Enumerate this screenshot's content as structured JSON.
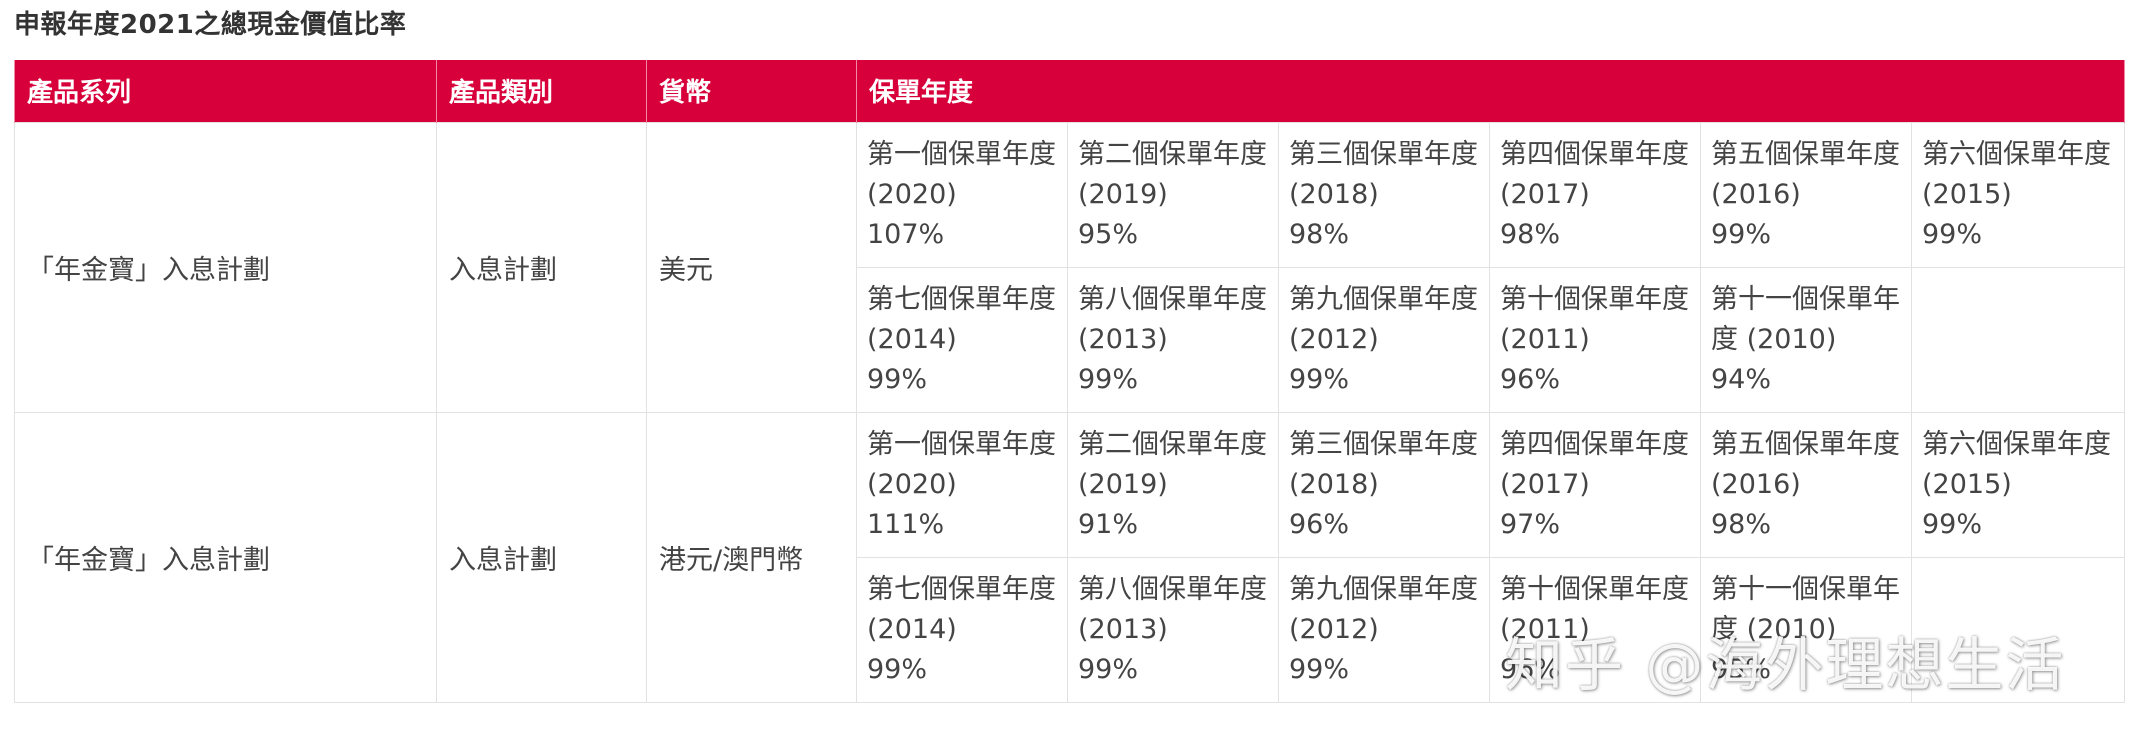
{
  "title": "申報年度2021之總現金價值比率",
  "headers": {
    "series": "產品系列",
    "category": "產品類別",
    "currency": "貨幣",
    "policy_year": "保單年度"
  },
  "rows": [
    {
      "series": "「年金寶」入息計劃",
      "category": "入息計劃",
      "currency": "美元",
      "years": [
        [
          {
            "label": "第一個保單年度 (2020)",
            "pct": "107%"
          },
          {
            "label": "第二個保單年度 (2019)",
            "pct": "95%"
          },
          {
            "label": "第三個保單年度 (2018)",
            "pct": "98%"
          },
          {
            "label": "第四個保單年度 (2017)",
            "pct": "98%"
          },
          {
            "label": "第五個保單年度 (2016)",
            "pct": "99%"
          },
          {
            "label": "第六個保單年度 (2015)",
            "pct": "99%"
          }
        ],
        [
          {
            "label": "第七個保單年度 (2014)",
            "pct": "99%"
          },
          {
            "label": "第八個保單年度 (2013)",
            "pct": "99%"
          },
          {
            "label": "第九個保單年度 (2012)",
            "pct": "99%"
          },
          {
            "label": "第十個保單年度 (2011)",
            "pct": "96%"
          },
          {
            "label": "第十一個保單年度 (2010)",
            "pct": "94%"
          },
          {
            "label": "",
            "pct": ""
          }
        ]
      ]
    },
    {
      "series": "「年金寶」入息計劃",
      "category": "入息計劃",
      "currency": "港元/澳門幣",
      "years": [
        [
          {
            "label": "第一個保單年度 (2020)",
            "pct": "111%"
          },
          {
            "label": "第二個保單年度 (2019)",
            "pct": "91%"
          },
          {
            "label": "第三個保單年度 (2018)",
            "pct": "96%"
          },
          {
            "label": "第四個保單年度 (2017)",
            "pct": "97%"
          },
          {
            "label": "第五個保單年度 (2016)",
            "pct": "98%"
          },
          {
            "label": "第六個保單年度 (2015)",
            "pct": "99%"
          }
        ],
        [
          {
            "label": "第七個保單年度 (2014)",
            "pct": "99%"
          },
          {
            "label": "第八個保單年度 (2013)",
            "pct": "99%"
          },
          {
            "label": "第九個保單年度 (2012)",
            "pct": "99%"
          },
          {
            "label": "第十個保單年度 (2011)",
            "pct": "96%"
          },
          {
            "label": "第十一個保單年度 (2010)",
            "pct": "95%"
          },
          {
            "label": "",
            "pct": ""
          }
        ]
      ]
    }
  ],
  "watermark": "知乎 @海外理想生活"
}
